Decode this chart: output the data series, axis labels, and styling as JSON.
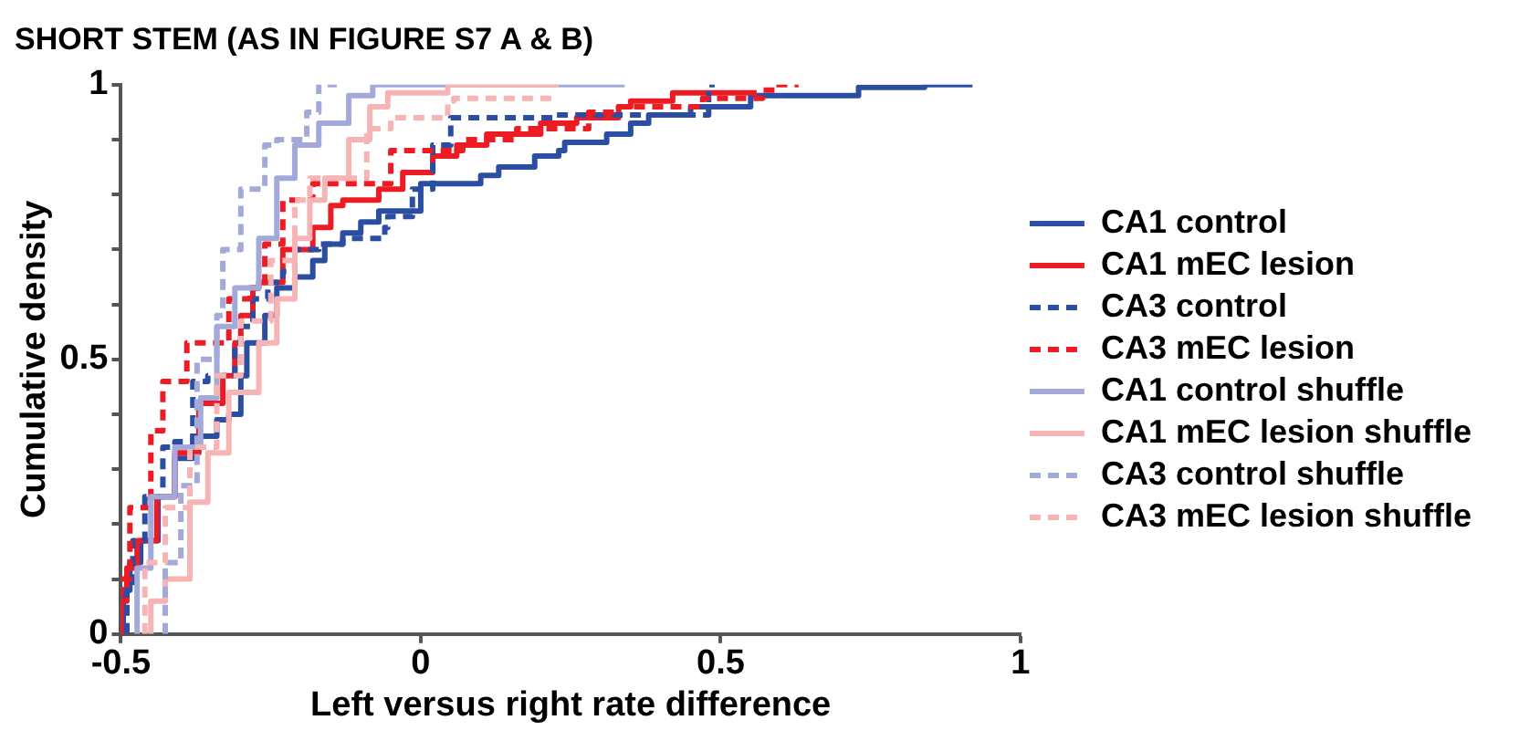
{
  "chart_data": {
    "type": "step",
    "title": "SHORT STEM (AS IN FIGURE S7 A & B)",
    "xlabel": "Left versus right rate difference",
    "ylabel": "Cumulative density",
    "xlim": [
      -0.5,
      1
    ],
    "xticks": [
      -0.5,
      0,
      0.5,
      1
    ],
    "ylim": [
      0,
      1
    ],
    "yticks": [
      0,
      {
        "value": 0.1,
        "label": null
      },
      {
        "value": 0.2,
        "label": null
      },
      {
        "value": 0.3,
        "label": null
      },
      {
        "value": 0.4,
        "label": null
      },
      0.5,
      {
        "value": 0.6,
        "label": null
      },
      {
        "value": 0.7,
        "label": null
      },
      {
        "value": 0.8,
        "label": null
      },
      {
        "value": 0.9,
        "label": null
      },
      1
    ],
    "grid": false,
    "legend": "right",
    "series": [
      {
        "name": "CA1 control",
        "color": "#2b4ea2",
        "line_style": "solid",
        "x": [
          -0.496,
          -0.485,
          -0.467,
          -0.438,
          -0.41,
          -0.38,
          -0.34,
          -0.32,
          -0.3,
          -0.29,
          -0.26,
          -0.24,
          -0.21,
          -0.18,
          -0.16,
          -0.13,
          -0.1,
          -0.07,
          0.0,
          0.1,
          0.13,
          0.19,
          0.23,
          0.24,
          0.31,
          0.35,
          0.38,
          0.45,
          0.55,
          0.73,
          0.84,
          0.92
        ],
        "values": [
          0,
          0.08,
          0.13,
          0.17,
          0.25,
          0.32,
          0.36,
          0.39,
          0.4,
          0.47,
          0.53,
          0.58,
          0.63,
          0.65,
          0.68,
          0.71,
          0.73,
          0.75,
          0.77,
          0.82,
          0.835,
          0.85,
          0.87,
          0.88,
          0.895,
          0.91,
          0.93,
          0.945,
          0.96,
          0.98,
          0.995,
          1
        ]
      },
      {
        "name": "CA1 mEC lesion",
        "color": "#ed1c24",
        "line_style": "solid",
        "x": [
          -0.5,
          -0.49,
          -0.473,
          -0.44,
          -0.41,
          -0.37,
          -0.33,
          -0.31,
          -0.3,
          -0.28,
          -0.27,
          -0.23,
          -0.18,
          -0.15,
          -0.13,
          -0.07,
          -0.03,
          0.02,
          0.06,
          0.11,
          0.2,
          0.26,
          0.33,
          0.35,
          0.42,
          0.43,
          0.56
        ],
        "values": [
          0,
          0.06,
          0.12,
          0.17,
          0.25,
          0.33,
          0.42,
          0.47,
          0.53,
          0.58,
          0.63,
          0.64,
          0.7,
          0.74,
          0.78,
          0.79,
          0.81,
          0.84,
          0.87,
          0.89,
          0.91,
          0.93,
          0.94,
          0.96,
          0.97,
          0.985,
          0.985
        ]
      },
      {
        "name": "CA3 control",
        "color": "#2b4ea2",
        "line_style": "dashed",
        "x": [
          -0.49,
          -0.48,
          -0.46,
          -0.43,
          -0.41,
          -0.38,
          -0.355,
          -0.31,
          -0.3,
          -0.28,
          -0.255,
          -0.23,
          -0.21,
          -0.17,
          -0.13,
          -0.06,
          -0.055,
          -0.014,
          0.02,
          0.05,
          0.22,
          0.48,
          0.49
        ],
        "values": [
          0,
          0.08,
          0.17,
          0.25,
          0.34,
          0.35,
          0.46,
          0.47,
          0.53,
          0.56,
          0.61,
          0.64,
          0.66,
          0.7,
          0.71,
          0.72,
          0.74,
          0.76,
          0.81,
          0.89,
          0.94,
          0.945,
          1
        ]
      },
      {
        "name": "CA3 mEC lesion",
        "color": "#ed1c24",
        "line_style": "dashed",
        "x": [
          -0.5,
          -0.485,
          -0.45,
          -0.43,
          -0.39,
          -0.32,
          -0.285,
          -0.26,
          -0.23,
          -0.18,
          -0.05,
          0.07,
          0.16,
          0.28,
          0.33,
          0.47,
          0.57,
          0.59,
          0.63
        ],
        "values": [
          0,
          0.1,
          0.23,
          0.37,
          0.46,
          0.53,
          0.61,
          0.63,
          0.71,
          0.79,
          0.82,
          0.88,
          0.9,
          0.92,
          0.95,
          0.96,
          0.975,
          0.99,
          1
        ]
      },
      {
        "name": "CA1 control shuffle",
        "color": "#a3a9d9",
        "line_style": "solid",
        "x": [
          -0.473,
          -0.45,
          -0.41,
          -0.367,
          -0.34,
          -0.31,
          -0.27,
          -0.24,
          -0.21,
          -0.17,
          -0.12,
          -0.08,
          0.0,
          0.34
        ],
        "values": [
          0,
          0.12,
          0.25,
          0.34,
          0.43,
          0.56,
          0.63,
          0.72,
          0.83,
          0.89,
          0.93,
          0.98,
          1,
          1
        ]
      },
      {
        "name": "CA1 mEC lesion shuffle",
        "color": "#f7b4b4",
        "line_style": "solid",
        "x": [
          -0.45,
          -0.426,
          -0.385,
          -0.355,
          -0.32,
          -0.27,
          -0.24,
          -0.21,
          -0.185,
          -0.16,
          -0.12,
          -0.085,
          -0.055,
          0.045,
          0.115,
          0.23
        ],
        "values": [
          0,
          0.06,
          0.1,
          0.24,
          0.33,
          0.44,
          0.53,
          0.61,
          0.72,
          0.79,
          0.83,
          0.9,
          0.96,
          0.985,
          1,
          1
        ]
      },
      {
        "name": "CA3 control shuffle",
        "color": "#a3a9d9",
        "line_style": "dashed",
        "x": [
          -0.426,
          -0.4,
          -0.373,
          -0.34,
          -0.33,
          -0.3,
          -0.26,
          -0.24,
          -0.19,
          -0.17,
          -0.14
        ],
        "values": [
          0,
          0.13,
          0.27,
          0.5,
          0.58,
          0.7,
          0.81,
          0.89,
          0.9,
          0.95,
          1
        ]
      },
      {
        "name": "CA3 mEC lesion shuffle",
        "color": "#f7b4b4",
        "line_style": "dashed",
        "x": [
          -0.46,
          -0.426,
          -0.385,
          -0.34,
          -0.3,
          -0.25,
          -0.21,
          -0.185,
          -0.09,
          -0.05,
          0.045,
          0.055,
          0.22
        ],
        "values": [
          0,
          0.13,
          0.23,
          0.34,
          0.47,
          0.57,
          0.68,
          0.79,
          0.83,
          0.92,
          0.94,
          0.97,
          0.975
        ]
      }
    ]
  }
}
